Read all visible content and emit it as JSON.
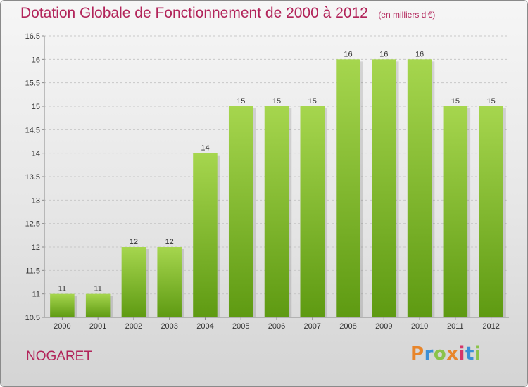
{
  "header": {
    "title": "Dotation Globale de Fonctionnement de 2000 à 2012",
    "subtitle": "(en milliers d'€)"
  },
  "footer": {
    "commune": "NOGARET",
    "logo_text": "Proxiti",
    "logo_colors": [
      "#e8852a",
      "#3a8fd6",
      "#8bc34a",
      "#e8852a",
      "#d6366a",
      "#3a8fd6",
      "#8bc34a"
    ]
  },
  "colors": {
    "title": "#b2245a",
    "bar_top": "#a6d64e",
    "bar_bottom": "#5e9a12"
  },
  "chart_data": {
    "type": "bar",
    "title": "Dotation Globale de Fonctionnement de 2000 à 2012",
    "subtitle": "(en milliers d'€)",
    "categories": [
      "2000",
      "2001",
      "2002",
      "2003",
      "2004",
      "2005",
      "2006",
      "2007",
      "2008",
      "2009",
      "2010",
      "2011",
      "2012"
    ],
    "values": [
      11,
      11,
      12,
      12,
      14,
      15,
      15,
      15,
      16,
      16,
      16,
      15,
      15
    ],
    "data_labels": [
      "11",
      "11",
      "12",
      "12",
      "14",
      "15",
      "15",
      "15",
      "16",
      "16",
      "16",
      "15",
      "15"
    ],
    "ylim": [
      10.5,
      16.5
    ],
    "yticks": [
      "10.5",
      "11",
      "11.5",
      "12",
      "12.5",
      "13",
      "13.5",
      "14",
      "14.5",
      "15",
      "15.5",
      "16",
      "16.5"
    ],
    "xlabel": "",
    "ylabel": "",
    "grid": "horizontal dashed"
  }
}
